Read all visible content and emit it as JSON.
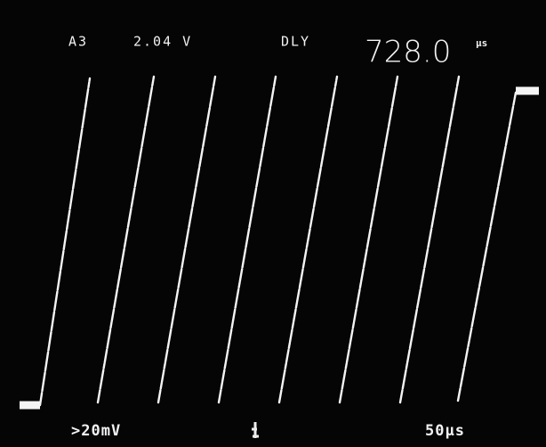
{
  "readout": {
    "channel": "A3",
    "voltage": "2.04 V",
    "mode": "DLY",
    "delay": "728.0",
    "delay_unit": "μs"
  },
  "footer": {
    "scale": ">20mV",
    "timebase": "50μs"
  }
}
